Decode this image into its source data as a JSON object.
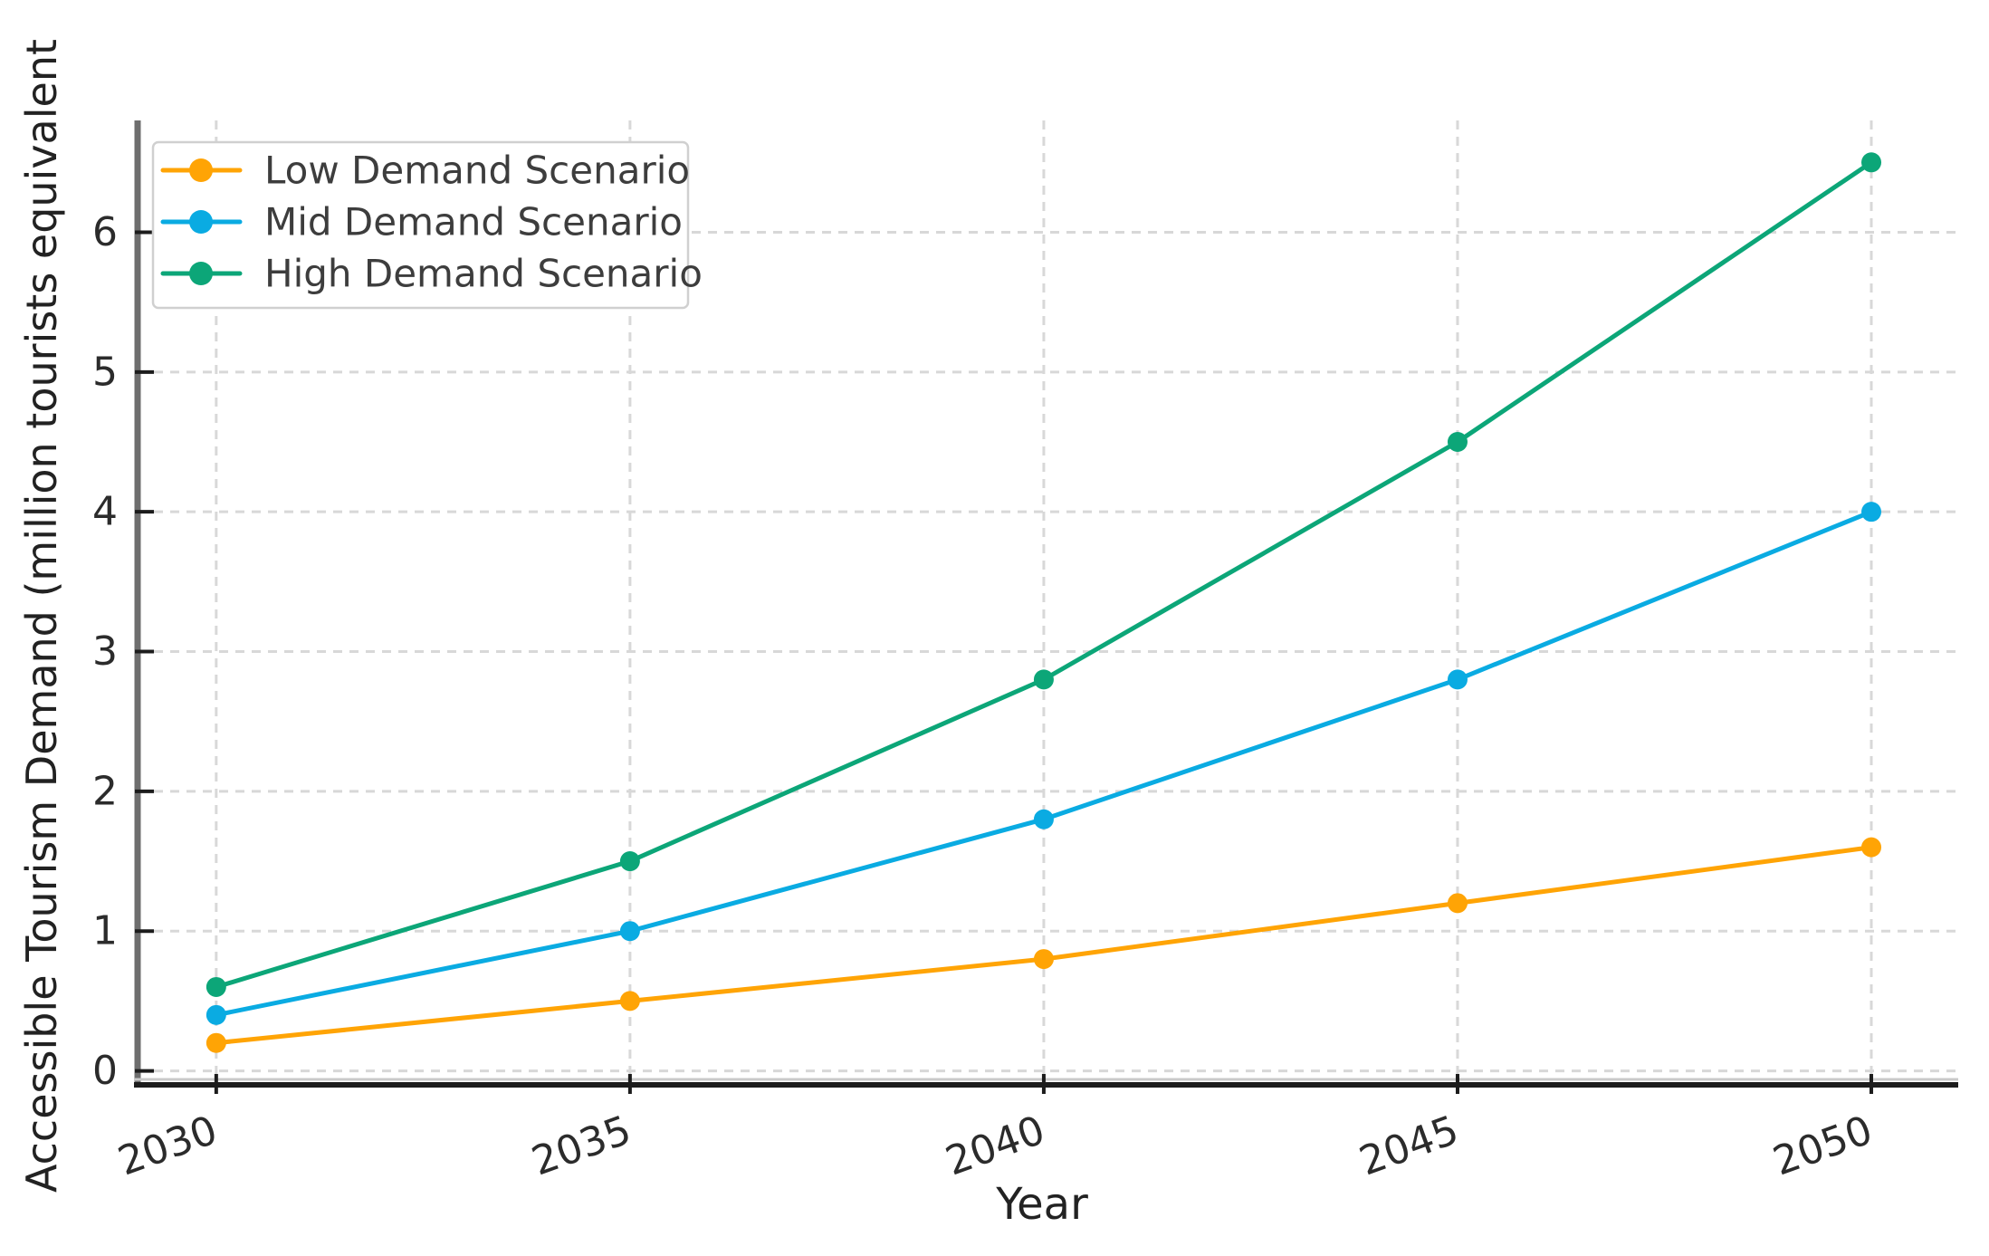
{
  "chart_data": {
    "type": "line",
    "title": "",
    "xlabel": "Year",
    "ylabel": "Accessible Tourism Demand (million tourists equivalent",
    "x": [
      2030,
      2035,
      2040,
      2045,
      2050
    ],
    "xticks": [
      "2030",
      "2035",
      "2040",
      "2045",
      "2050"
    ],
    "yticks": [
      "0",
      "1",
      "2",
      "3",
      "4",
      "5",
      "6"
    ],
    "xlim": [
      2029.05,
      2051.05
    ],
    "ylim": [
      -0.1,
      6.8
    ],
    "grid": true,
    "grid_style": "dashed",
    "x_tick_rotation_deg": 20,
    "legend_position": "upper-left",
    "series": [
      {
        "name": "Low Demand Scenario",
        "color": "#FFA405",
        "values": [
          0.2,
          0.5,
          0.8,
          1.2,
          1.6
        ]
      },
      {
        "name": "Mid Demand Scenario",
        "color": "#0AABE2",
        "values": [
          0.4,
          1.0,
          1.8,
          2.8,
          4.0
        ]
      },
      {
        "name": "High Demand Scenario",
        "color": "#0CA678",
        "values": [
          0.6,
          1.5,
          2.8,
          4.5,
          6.5
        ]
      }
    ]
  },
  "styles": {
    "background": "#ffffff",
    "grid_color": "#d8d8d8",
    "left_spine_color": "#6e6e6e",
    "bottom_spine_color": "#1c1c1c",
    "bottom_subline_color": "#c9c9c9",
    "tick_color": "#1c1c1c",
    "tick_label_color": "#2b2b2b",
    "axis_label_color": "#222222",
    "legend_text_color": "#3d3d3d",
    "legend_border_color": "#d0d0d0",
    "legend_background": "#ffffff"
  }
}
